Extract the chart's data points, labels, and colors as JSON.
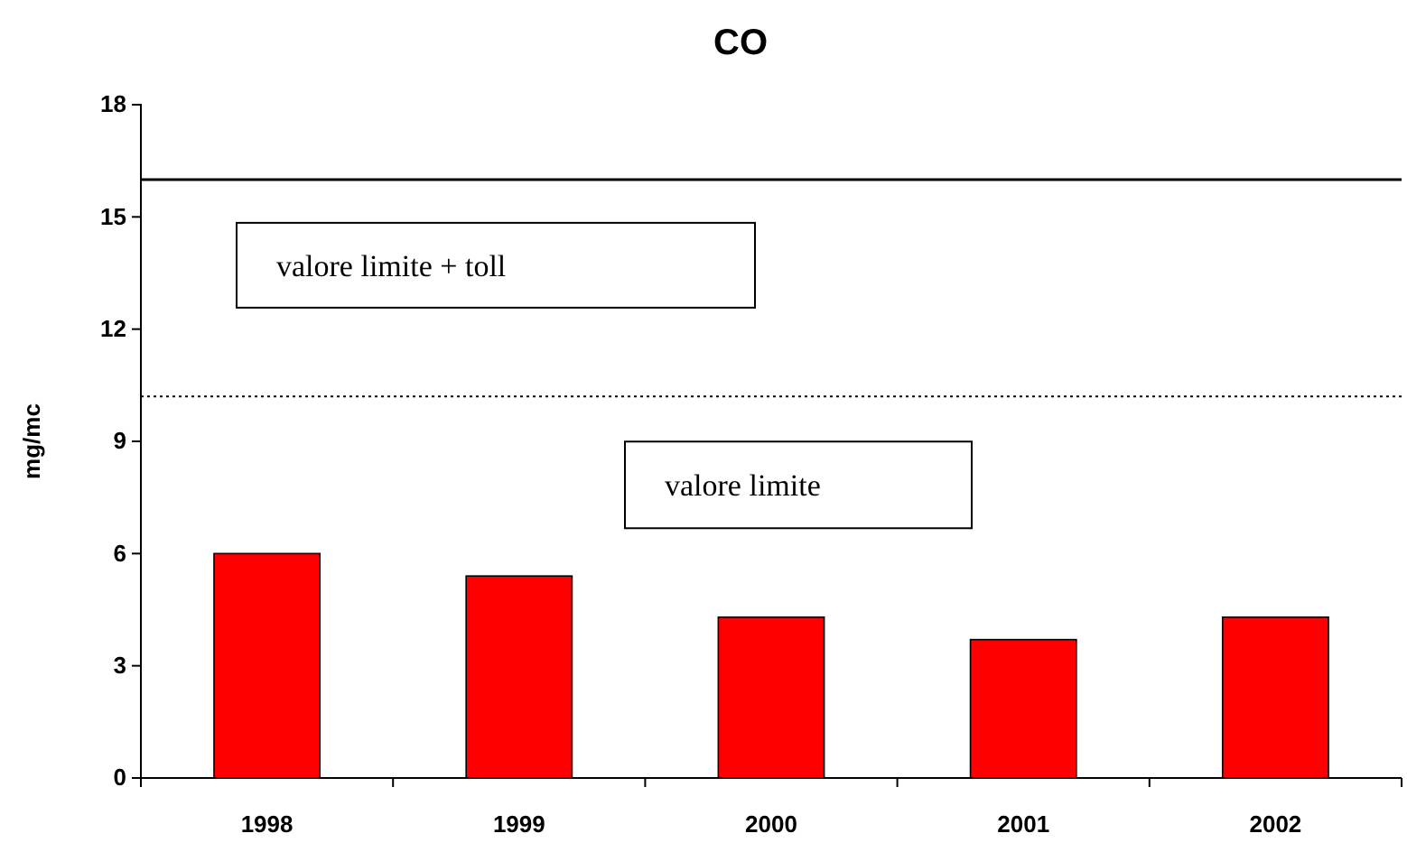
{
  "chart_data": {
    "type": "bar",
    "title": "CO",
    "ylabel": "mg/mc",
    "categories": [
      "1998",
      "1999",
      "2000",
      "2001",
      "2002"
    ],
    "values": [
      6.0,
      5.4,
      4.3,
      3.7,
      4.3
    ],
    "color": "#ff0000",
    "ylim": [
      0,
      18
    ],
    "yticks": [
      0,
      3,
      6,
      9,
      12,
      15,
      18
    ],
    "grid": false,
    "ref_lines": [
      {
        "axis": "y",
        "value": 16,
        "label": "valore limite + toll",
        "line_style": "solid",
        "color": "#000000"
      },
      {
        "axis": "y",
        "value": 10.2,
        "label": "valore limite",
        "line_style": "dotted",
        "color": "#000000"
      }
    ]
  }
}
